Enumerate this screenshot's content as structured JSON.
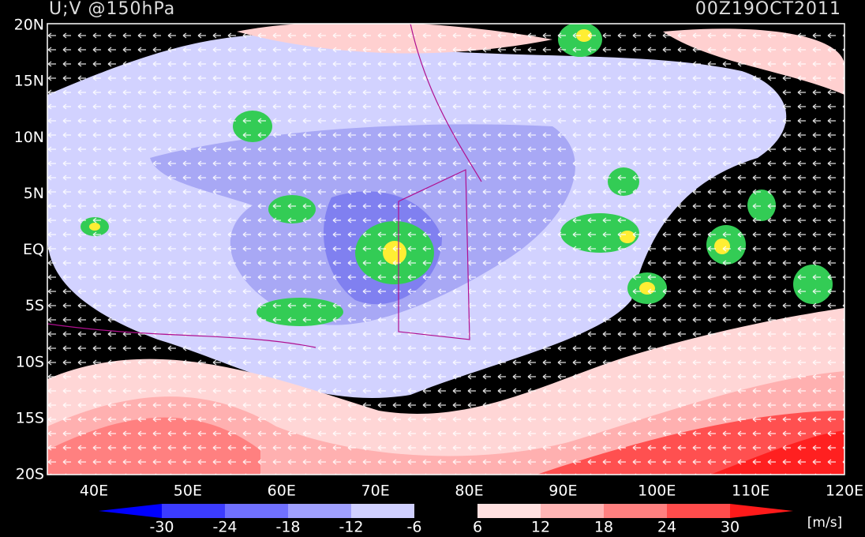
{
  "header": {
    "title": "U;V @150hPa",
    "time": "00Z19OCT2011"
  },
  "map": {
    "lat_labels": [
      "20N",
      "15N",
      "10N",
      "5N",
      "EQ",
      "5S",
      "10S",
      "15S",
      "20S"
    ],
    "lon_labels": [
      "40E",
      "50E",
      "60E",
      "70E",
      "80E",
      "90E",
      "100E",
      "110E",
      "120E"
    ]
  },
  "colorbar": {
    "ticks": [
      -30,
      -24,
      -18,
      -12,
      -6,
      6,
      12,
      18,
      24,
      30
    ],
    "unit": "[m/s]"
  }
}
